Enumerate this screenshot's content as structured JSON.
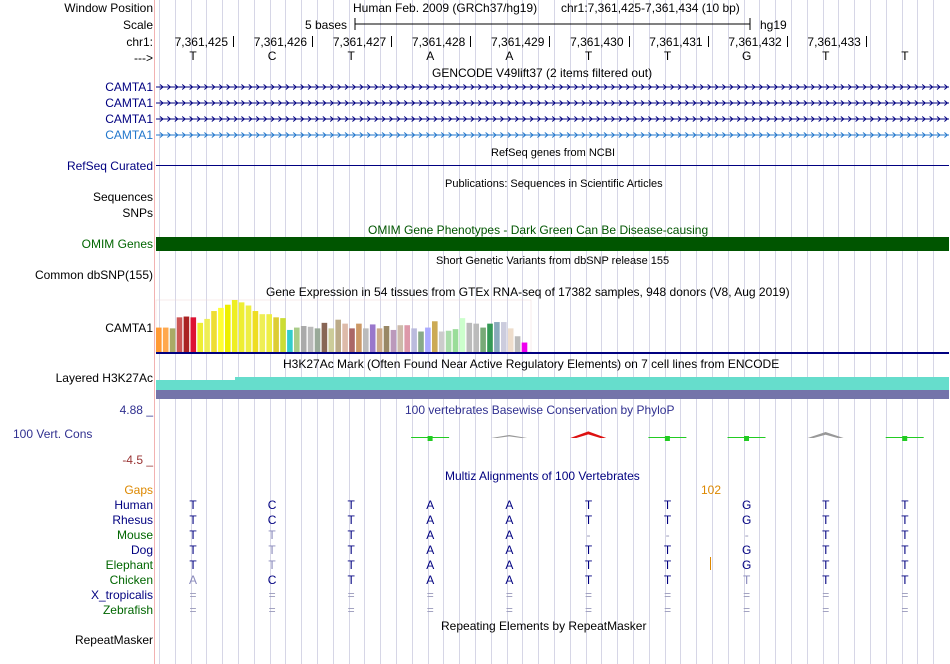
{
  "labels": {
    "window_position": "Window Position",
    "scale": "Scale",
    "chrom": "chr1:",
    "strand": "--->",
    "camta_tracks": [
      "CAMTA1",
      "CAMTA1",
      "CAMTA1",
      "CAMTA1"
    ],
    "refseq": "RefSeq Curated",
    "sequences": "Sequences",
    "snps": "SNPs",
    "omim": "OMIM Genes",
    "common_dbsnp": "Common dbSNP(155)",
    "gtex": "CAMTA1",
    "h3k27ac": "Layered H3K27Ac",
    "cons_max": "4.88 _",
    "cons_name": "100 Vert. Cons",
    "cons_min": "-4.5 _",
    "gaps": "Gaps",
    "species": [
      "Human",
      "Rhesus",
      "Mouse",
      "Dog",
      "Elephant",
      "Chicken",
      "X_tropicalis",
      "Zebrafish"
    ],
    "repeatmasker": "RepeatMasker"
  },
  "header": {
    "assembly_title": "Human Feb. 2009 (GRCh37/hg19)",
    "position": "chr1:7,361,425-7,361,434 (10 bp)",
    "scale_text": "5 bases",
    "db": "hg19",
    "coordinates": [
      "7,361,425",
      "7,361,426",
      "7,361,427",
      "7,361,428",
      "7,361,429",
      "7,361,430",
      "7,361,431",
      "7,361,432",
      "7,361,433"
    ],
    "bases": [
      "T",
      "C",
      "T",
      "A",
      "A",
      "T",
      "T",
      "G",
      "T",
      "T"
    ]
  },
  "tracks": {
    "gencode_title": "GENCODE V49lift37 (2 items filtered out)",
    "refseq_title": "RefSeq genes from NCBI",
    "publications_title": "Publications: Sequences in Scientific Articles",
    "omim_title": "OMIM Gene Phenotypes - Dark Green Can Be Disease-causing",
    "dbsnp_title": "Short Genetic Variants from dbSNP release 155",
    "gtex_title": "Gene Expression in 54 tissues from GTEx RNA-seq of 17382 samples, 948 donors (V8, Aug 2019)",
    "h3k27ac_title": "H3K27Ac Mark (Often Found Near Active Regulatory Elements) on 7 cell lines from ENCODE",
    "phylop_title": "100 vertebrates Basewise Conservation by PhyloP",
    "multiz_title": "Multiz Alignments of 100 Vertebrates",
    "gap_count": "102",
    "repeatmasker_title": "Repeating Elements by RepeatMasker"
  },
  "alignment": {
    "rows": [
      [
        "T",
        "C",
        "T",
        "A",
        "A",
        "T",
        "T",
        "G",
        "T",
        "T"
      ],
      [
        "T",
        "C",
        "T",
        "A",
        "A",
        "T",
        "T",
        "G",
        "T",
        "T"
      ],
      [
        "T",
        "T",
        "T",
        "A",
        "A",
        "-",
        "-",
        "-",
        "T",
        "T"
      ],
      [
        "T",
        "T",
        "T",
        "A",
        "A",
        "T",
        "T",
        "G",
        "T",
        "T"
      ],
      [
        "T",
        "T",
        "T",
        "A",
        "A",
        "T",
        "T",
        "G",
        "T",
        "T"
      ],
      [
        "A",
        "C",
        "T",
        "A",
        "A",
        "T",
        "T",
        "T",
        "T",
        "T"
      ],
      [
        "=",
        "=",
        "=",
        "=",
        "=",
        "=",
        "=",
        "=",
        "=",
        "="
      ],
      [
        "=",
        "=",
        "=",
        "=",
        "=",
        "=",
        "=",
        "=",
        "=",
        "="
      ]
    ]
  },
  "gtex_data": {
    "values": [
      0.31,
      0.31,
      0.3,
      0.44,
      0.45,
      0.44,
      0.37,
      0.42,
      0.52,
      0.56,
      0.6,
      0.66,
      0.63,
      0.59,
      0.52,
      0.48,
      0.48,
      0.44,
      0.43,
      0.28,
      0.31,
      0.33,
      0.32,
      0.3,
      0.37,
      0.3,
      0.41,
      0.36,
      0.3,
      0.36,
      0.3,
      0.35,
      0.3,
      0.33,
      0.28,
      0.34,
      0.34,
      0.3,
      0.26,
      0.31,
      0.39,
      0.26,
      0.27,
      0.29,
      0.43,
      0.37,
      0.36,
      0.31,
      0.36,
      0.38,
      0.38,
      0.3,
      0.2,
      0.12
    ],
    "colors": [
      "#ff9933",
      "#ffa84d",
      "#aaaa66",
      "#cc5555",
      "#aa2222",
      "#dd1133",
      "#eeee33",
      "#eeee55",
      "#eedd33",
      "#ffff33",
      "#eeee00",
      "#eeee22",
      "#eeee33",
      "#eeee44",
      "#eedd22",
      "#eeee55",
      "#eeee44",
      "#ddcc33",
      "#ccdd33",
      "#33cccc",
      "#aacc88",
      "#aaaaaa",
      "#bbbbbb",
      "#99aa99",
      "#886655",
      "#cccc99",
      "#bbaa88",
      "#ddbbaa",
      "#aa6666",
      "#cc9966",
      "#bbbbbb",
      "#9977cc",
      "#ccaa88",
      "#998866",
      "#bb99bb",
      "#ccbbaa",
      "#dd99aa",
      "#bbbbdd",
      "#88aa88",
      "#aaaaff",
      "#ccaa55",
      "#cccccc",
      "#aaddaa",
      "#99dd99",
      "#ccffcc",
      "#bbbbbb",
      "#bbbbbb",
      "#77aa77",
      "#339955",
      "#88aabb",
      "#ccccdd",
      "#eeddcc",
      "#bbbbbb",
      "#ee00ee"
    ]
  },
  "phylop_data": {
    "scores": [
      0.0,
      0.35,
      -0.25,
      -0.55,
      0.15,
      0.4,
      -0.5,
      0.2,
      0.0,
      0.05
    ]
  },
  "colors": {
    "gene_navy": "#000080",
    "omim_green": "#005500",
    "h3k27ac_teal": "#66ddcc",
    "h3k27ac_slate": "#7474aa",
    "phylop_blue": "#303090",
    "phylop_neg": "#993333",
    "gap_orange": "#dd8800",
    "species_navy": "#000080",
    "species_green": "#006600"
  }
}
